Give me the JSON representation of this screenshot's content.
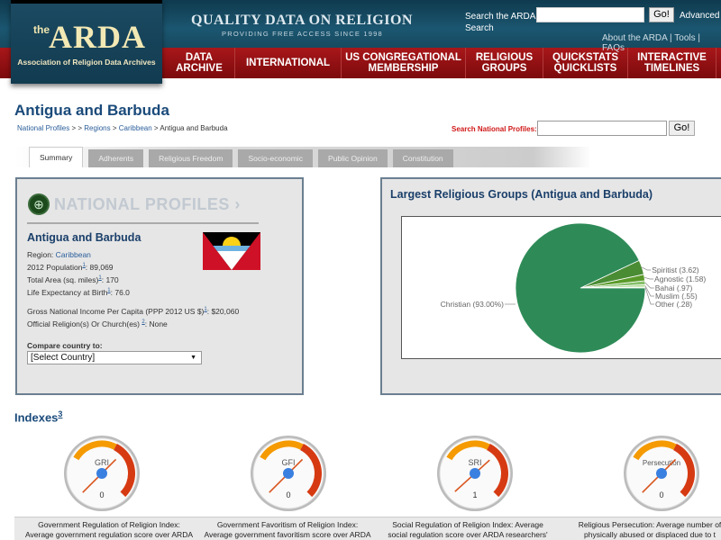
{
  "header": {
    "logo": {
      "the": "the",
      "name": "ARDA",
      "subtitle": "Association of Religion Data Archives"
    },
    "tagline": "QUALITY DATA ON RELIGION",
    "tagline_sub": "PROVIDING FREE ACCESS SINCE 1998",
    "search_label": "Search the ARDA",
    "search_value": "",
    "search_button": "Go!",
    "advanced_search": "Advanced Search",
    "top_links": [
      "About the ARDA",
      "Tools",
      "FAQs"
    ]
  },
  "nav": [
    {
      "label": "DATA ARCHIVE",
      "width": 79
    },
    {
      "label": "INTERNATIONAL",
      "width": 118
    },
    {
      "label": "US CONGREGATIONAL MEMBERSHIP",
      "width": 138
    },
    {
      "label": "RELIGIOUS GROUPS",
      "width": 86
    },
    {
      "label": "QUICKSTATS QUICKLISTS",
      "width": 94
    },
    {
      "label": "INTERACTIVE TIMELINES",
      "width": 98
    }
  ],
  "page": {
    "title": "Antigua and Barbuda",
    "breadcrumb": {
      "national_profiles": "National Profiles",
      "sep1": " > > ",
      "regions": "Regions",
      "sep2": " > ",
      "caribbean": "Caribbean",
      "sep3": " > ",
      "current": "Antigua and Barbuda"
    },
    "profile_search": {
      "label": "Search National Profiles:",
      "value": "",
      "button": "Go!"
    },
    "tabs": [
      "Summary",
      "Adherents",
      "Religious Freedom",
      "Socio-economic",
      "Public Opinion",
      "Constitution"
    ],
    "active_tab": "Summary"
  },
  "profile": {
    "banner": "NATIONAL PROFILES ›",
    "country": "Antigua and Barbuda",
    "region_label": "Region: ",
    "region": "Caribbean",
    "population_label": "2012 Population",
    "population": ": 89,069",
    "area_label": "Total Area (sq. miles)",
    "area": ": 170",
    "life_label": "Life Expectancy at Birth",
    "life": ": 76.0",
    "gni_label": "Gross National Income Per Capita (PPP 2012 US $)",
    "gni": ": $20,060",
    "official_label": "Official Religion(s) Or Church(es) ",
    "official": ": None",
    "footnote1": "1",
    "footnote2": "2",
    "compare_label": "Compare country to:",
    "compare_value": "[Select Country]"
  },
  "chart_data": {
    "type": "pie",
    "title": "Largest Religious Groups (Antigua and Barbuda)",
    "categories": [
      "Christian",
      "Spiritist",
      "Agnostic",
      "Bahai",
      "Muslim",
      "Other"
    ],
    "values": [
      93.0,
      3.62,
      1.58,
      0.97,
      0.55,
      0.28
    ],
    "labels": [
      "Christian (93.00%)",
      "Spiritist (3.62)",
      "Agnostic (1.58)",
      "Bahai (.97)",
      "Muslim (.55)",
      "Other (.28)"
    ],
    "colors": [
      "#2e8b57",
      "#4a8c34",
      "#5a9a2a",
      "#86c06a",
      "#a8d88a",
      "#c8ecb0"
    ]
  },
  "indexes": {
    "title": "Indexes",
    "footnote": "3",
    "gauges": [
      {
        "label": "GRI",
        "value": "0",
        "desc1": "Government Regulation of Religion Index:",
        "desc2": "Average government regulation score over ARDA"
      },
      {
        "label": "GFI",
        "value": "0",
        "desc1": "Government Favoritism of Religion Index:",
        "desc2": "Average government favoritism score over ARDA"
      },
      {
        "label": "SRI",
        "value": "1",
        "desc1": "Social Regulation of Religion Index: Average",
        "desc2": "social regulation score over ARDA researchers'"
      },
      {
        "label": "Persecution",
        "value": "0",
        "desc1": "Religious Persecution: Average number of",
        "desc2": "physically abused or displaced due to t"
      }
    ]
  }
}
